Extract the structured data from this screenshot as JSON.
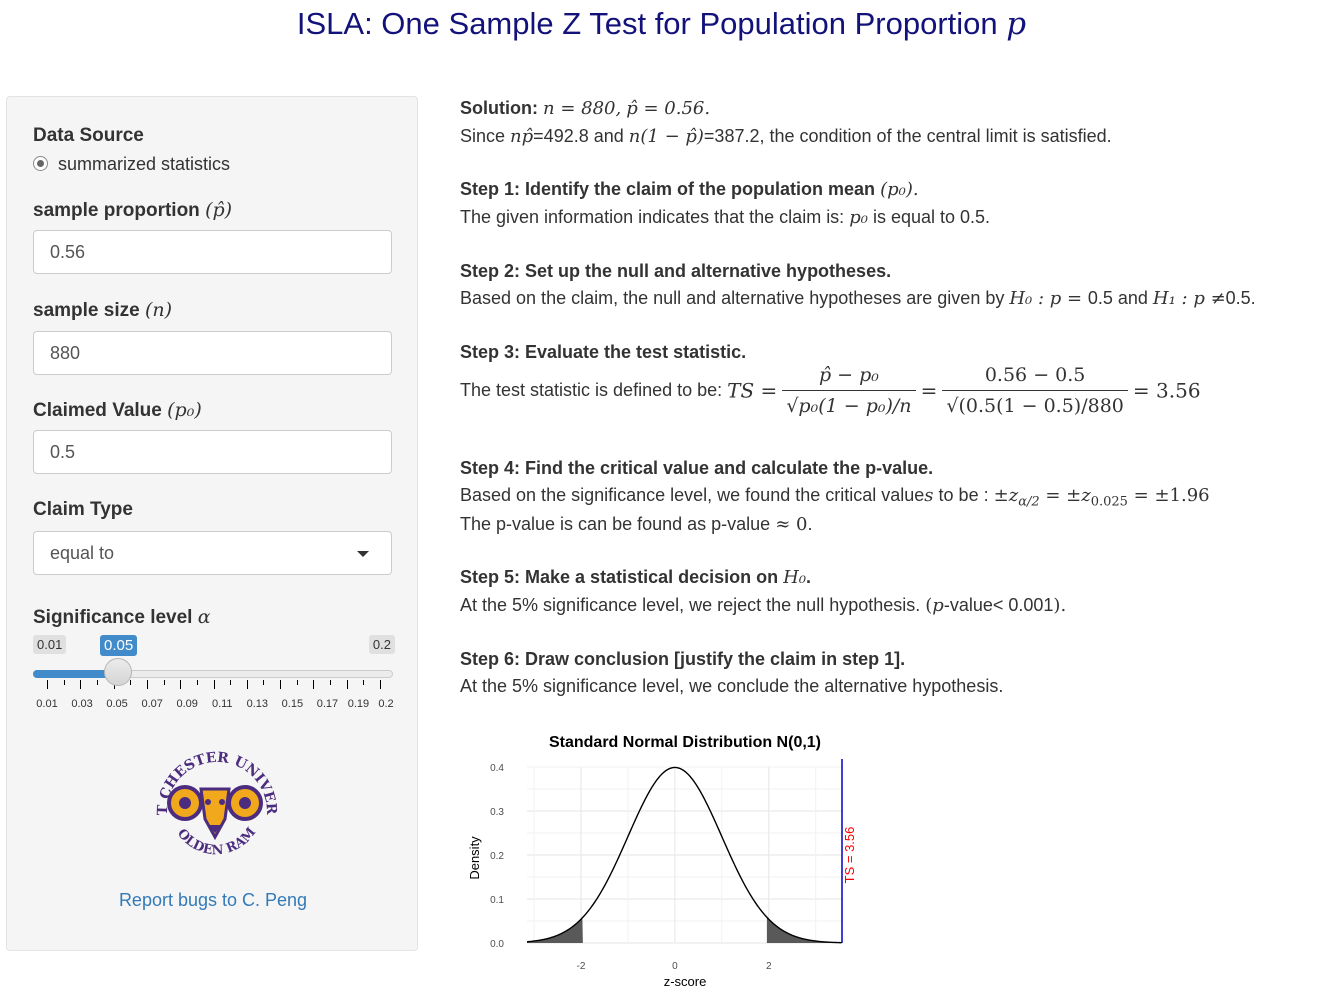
{
  "title": {
    "text": "ISLA: One Sample Z Test for Population Proportion",
    "symbol": "p"
  },
  "sidebar": {
    "data_source_label": "Data Source",
    "data_source_option": "summarized statistics",
    "sample_proportion_label": "sample proportion",
    "sample_proportion_symbol": "(p̂)",
    "sample_proportion_value": "0.56",
    "sample_size_label": "sample size",
    "sample_size_symbol": "(n)",
    "sample_size_value": "880",
    "claimed_value_label": "Claimed Value",
    "claimed_value_symbol": "(p₀)",
    "claimed_value_value": "0.5",
    "claim_type_label": "Claim Type",
    "claim_type_value": "equal to",
    "significance_label": "Significance level",
    "significance_symbol": "α",
    "slider": {
      "min_label": "0.01",
      "max_label": "0.2",
      "value_label": "0.05",
      "value": 0.05,
      "min": 0.01,
      "max": 0.2,
      "tick_labels": [
        "0.01",
        "0.03",
        "0.05",
        "0.07",
        "0.09",
        "0.11",
        "0.13",
        "0.15",
        "0.17",
        "0.19",
        "0.2"
      ]
    },
    "logo": {
      "top_text": "WEST CHESTER UNIVERSITY",
      "bottom_text": "GOLDEN RAMS",
      "icon": "ram-logo-icon"
    },
    "report_link": "Report bugs to C. Peng"
  },
  "solution": {
    "label": "Solution:",
    "n_eq": "n = 880,",
    "phat_eq": "p̂ = 0.56.",
    "since": "Since",
    "np_sym": "np̂",
    "np_val": "=492.8 and",
    "nq_sym": "n(1 − p̂)",
    "nq_val": "=387.2, the condition of the central limit is satisfied."
  },
  "step1": {
    "heading": "Step 1: Identify the claim of the population mean",
    "heading_sym": "(p₀).",
    "text_a": "The given information indicates that the claim is:",
    "text_sym": "p₀",
    "text_b": "is equal to 0.5."
  },
  "step2": {
    "heading": "Step 2: Set up the null and alternative hypotheses.",
    "text_a": "Based on the claim, the null and alternative hypotheses are given by",
    "h0": "H₀ : p = ",
    "h0_val": "0.5 and",
    "h1": "H₁ : p ≠",
    "h1_val": "0.5."
  },
  "step3": {
    "heading": "Step 3: Evaluate the test statistic.",
    "text_a": "The test statistic is defined to be:",
    "ts_sym": "TS =",
    "f1_num": "p̂ − p₀",
    "f1_den": "√p₀(1 − p₀)/n",
    "eq": "=",
    "f2_num": "0.56 − 0.5",
    "f2_den": "√(0.5(1 − 0.5)/880",
    "result": "= 3.56"
  },
  "step4": {
    "heading": "Step 4: Find the critical value and calculate the p-value.",
    "text_a": "Based on the significance level, we found the critical value",
    "text_s": "s",
    "text_b": "to be :",
    "crit": "±z",
    "crit_sub1": "α/2",
    "crit_eq": " = ±z",
    "crit_sub2": "0.025",
    "crit_val": " = ±1.96",
    "pval_a": "The p-value is can be found as p-value",
    "pval_sym": "≈ 0",
    "pval_b": "."
  },
  "step5": {
    "heading": "Step 5: Make a statistical decision on",
    "heading_sym": "H₀",
    "heading_end": ".",
    "text_a": "At the 5% significance level, we reject the null hypothesis.",
    "paren_open": "(",
    "p_sym": "p",
    "text_b": "-value< 0.001",
    "paren_close": ")."
  },
  "step6": {
    "heading": "Step 6: Draw conclusion [justify the claim in step 1].",
    "text": "At the 5% significance level, we conclude the alternative hypothesis."
  },
  "chart_data": {
    "type": "line",
    "title": "Standard Normal Distribution N(0,1)",
    "xlabel": "z-score",
    "ylabel": "Density",
    "xlim": [
      -3.15,
      3.56
    ],
    "ylim": [
      0,
      0.4
    ],
    "x_ticks": [
      -2,
      0,
      2
    ],
    "y_ticks": [
      0.0,
      0.1,
      0.2,
      0.3,
      0.4
    ],
    "x_tick_labels": [
      "-2",
      "0",
      "2"
    ],
    "y_tick_labels": [
      "0.0",
      "0.1",
      "0.2",
      "0.3",
      "0.4"
    ],
    "series": [
      {
        "curve": "standard normal density"
      }
    ],
    "shaded_regions": [
      [
        -3.15,
        -1.96
      ],
      [
        1.96,
        3.56
      ]
    ],
    "ts_line": {
      "x": 3.56,
      "label": "TS = 3.56",
      "color": "#ff0000",
      "line_color": "#0000cc"
    },
    "shade_color": "#595959",
    "grid": true
  }
}
